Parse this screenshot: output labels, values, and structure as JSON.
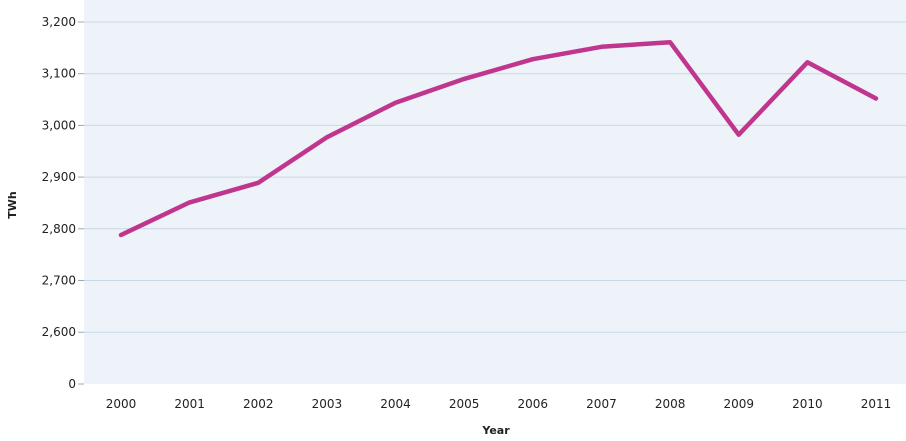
{
  "chart_data": {
    "type": "line",
    "title": "",
    "xlabel": "Year",
    "ylabel": "TWh",
    "categories": [
      "2000",
      "2001",
      "2002",
      "2003",
      "2004",
      "2005",
      "2006",
      "2007",
      "2008",
      "2009",
      "2010",
      "2011"
    ],
    "series": [
      {
        "values": [
          2788,
          2851,
          2889,
          2977,
          3044,
          3090,
          3128,
          3152,
          3161,
          2982,
          3122,
          3052
        ]
      }
    ],
    "ylim": [
      2500,
      3200
    ],
    "y_ticks": [
      2600,
      2700,
      2800,
      2900,
      3000,
      3100,
      3200
    ],
    "y_tick_labels": [
      "0",
      "2,600",
      "2,700",
      "2,800",
      "2,900",
      "3,000",
      "3,100",
      "3,200"
    ],
    "axis_break": "y axis starts at 0 with a break below 2,600",
    "grid": true,
    "legend": "none",
    "colors": {
      "line": "#c0368f",
      "plot_bg": "#edf3f8",
      "grid": "#c9d8e6"
    }
  }
}
